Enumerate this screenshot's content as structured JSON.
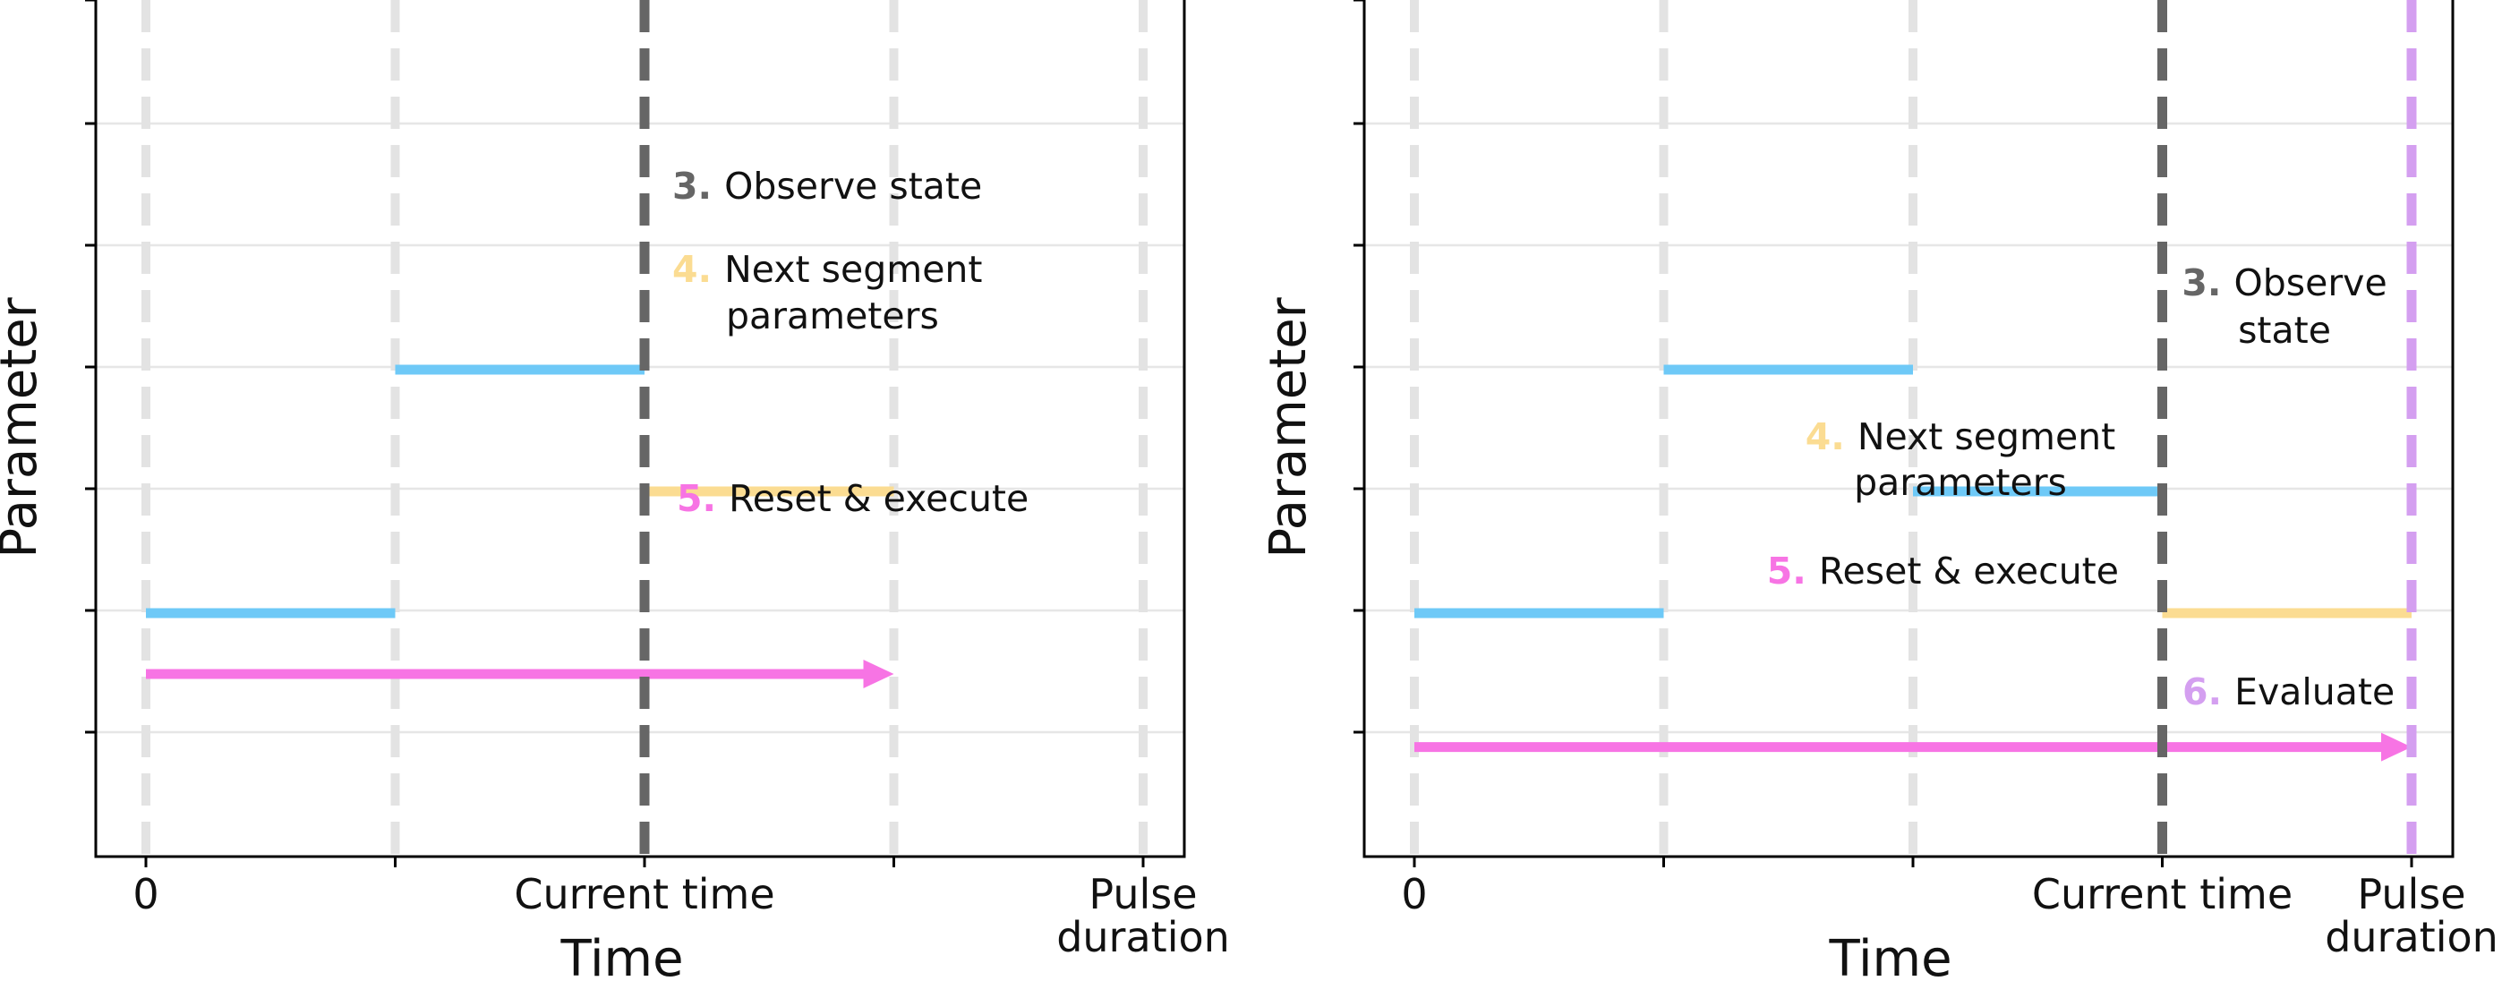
{
  "colors": {
    "segment_blue": "#6ec9f7",
    "next_segment_yellow": "#fbdc92",
    "execute_pink": "#f774e4",
    "current_time_line": "#666666",
    "evaluate_purple": "#d49ff0",
    "time_gridline": "#e3e3e3",
    "param_gridline": "#e6e6e6",
    "axis": "#000000"
  },
  "panels": [
    {
      "xlabel": "Time",
      "ylabel": "Parameter",
      "xticks": [
        {
          "x": 0,
          "lines": [
            "0"
          ]
        },
        {
          "x": 2,
          "lines": [
            "Current time"
          ]
        },
        {
          "x": 4,
          "lines": [
            "Pulse",
            "duration"
          ]
        }
      ],
      "segments": [
        {
          "kind": "past",
          "x0": 0,
          "x1": 1,
          "y": 3
        },
        {
          "kind": "past",
          "x0": 1,
          "x1": 2,
          "y": 5
        },
        {
          "kind": "next",
          "x0": 2,
          "x1": 3,
          "y": 4
        }
      ],
      "arrow": {
        "x0": 0,
        "x1": 3,
        "y": 2.5
      },
      "steps": [
        {
          "num": "3.",
          "kind": "observe",
          "anchor": "start",
          "lines": [
            "Observe state"
          ]
        },
        {
          "num": "4.",
          "kind": "next",
          "anchor": "start",
          "lines": [
            "Next segment",
            "parameters"
          ]
        },
        {
          "num": "5.",
          "kind": "execute",
          "anchor": "start",
          "lines": [
            "Reset & execute"
          ]
        }
      ]
    },
    {
      "xlabel": "Time",
      "ylabel": "Parameter",
      "xticks": [
        {
          "x": 0,
          "lines": [
            "0"
          ]
        },
        {
          "x": 3,
          "lines": [
            "Current time"
          ]
        },
        {
          "x": 4,
          "lines": [
            "Pulse",
            "duration"
          ]
        }
      ],
      "segments": [
        {
          "kind": "past",
          "x0": 0,
          "x1": 1,
          "y": 3
        },
        {
          "kind": "past",
          "x0": 1,
          "x1": 2,
          "y": 5
        },
        {
          "kind": "past",
          "x0": 2,
          "x1": 3,
          "y": 4
        },
        {
          "kind": "next",
          "x0": 3,
          "x1": 4,
          "y": 3
        }
      ],
      "arrow": {
        "x0": 0,
        "x1": 4,
        "y": 1.9
      },
      "steps": [
        {
          "num": "3.",
          "kind": "observe",
          "anchor": "middle",
          "lines": [
            "Observe",
            "state"
          ]
        },
        {
          "num": "4.",
          "kind": "next",
          "anchor": "middle",
          "lines": [
            "Next segment",
            "parameters"
          ]
        },
        {
          "num": "5.",
          "kind": "execute",
          "anchor": "end",
          "lines": [
            "Reset & execute"
          ]
        },
        {
          "num": "6.",
          "kind": "evaluate",
          "anchor": "start",
          "lines": [
            "Evaluate"
          ]
        }
      ]
    }
  ]
}
